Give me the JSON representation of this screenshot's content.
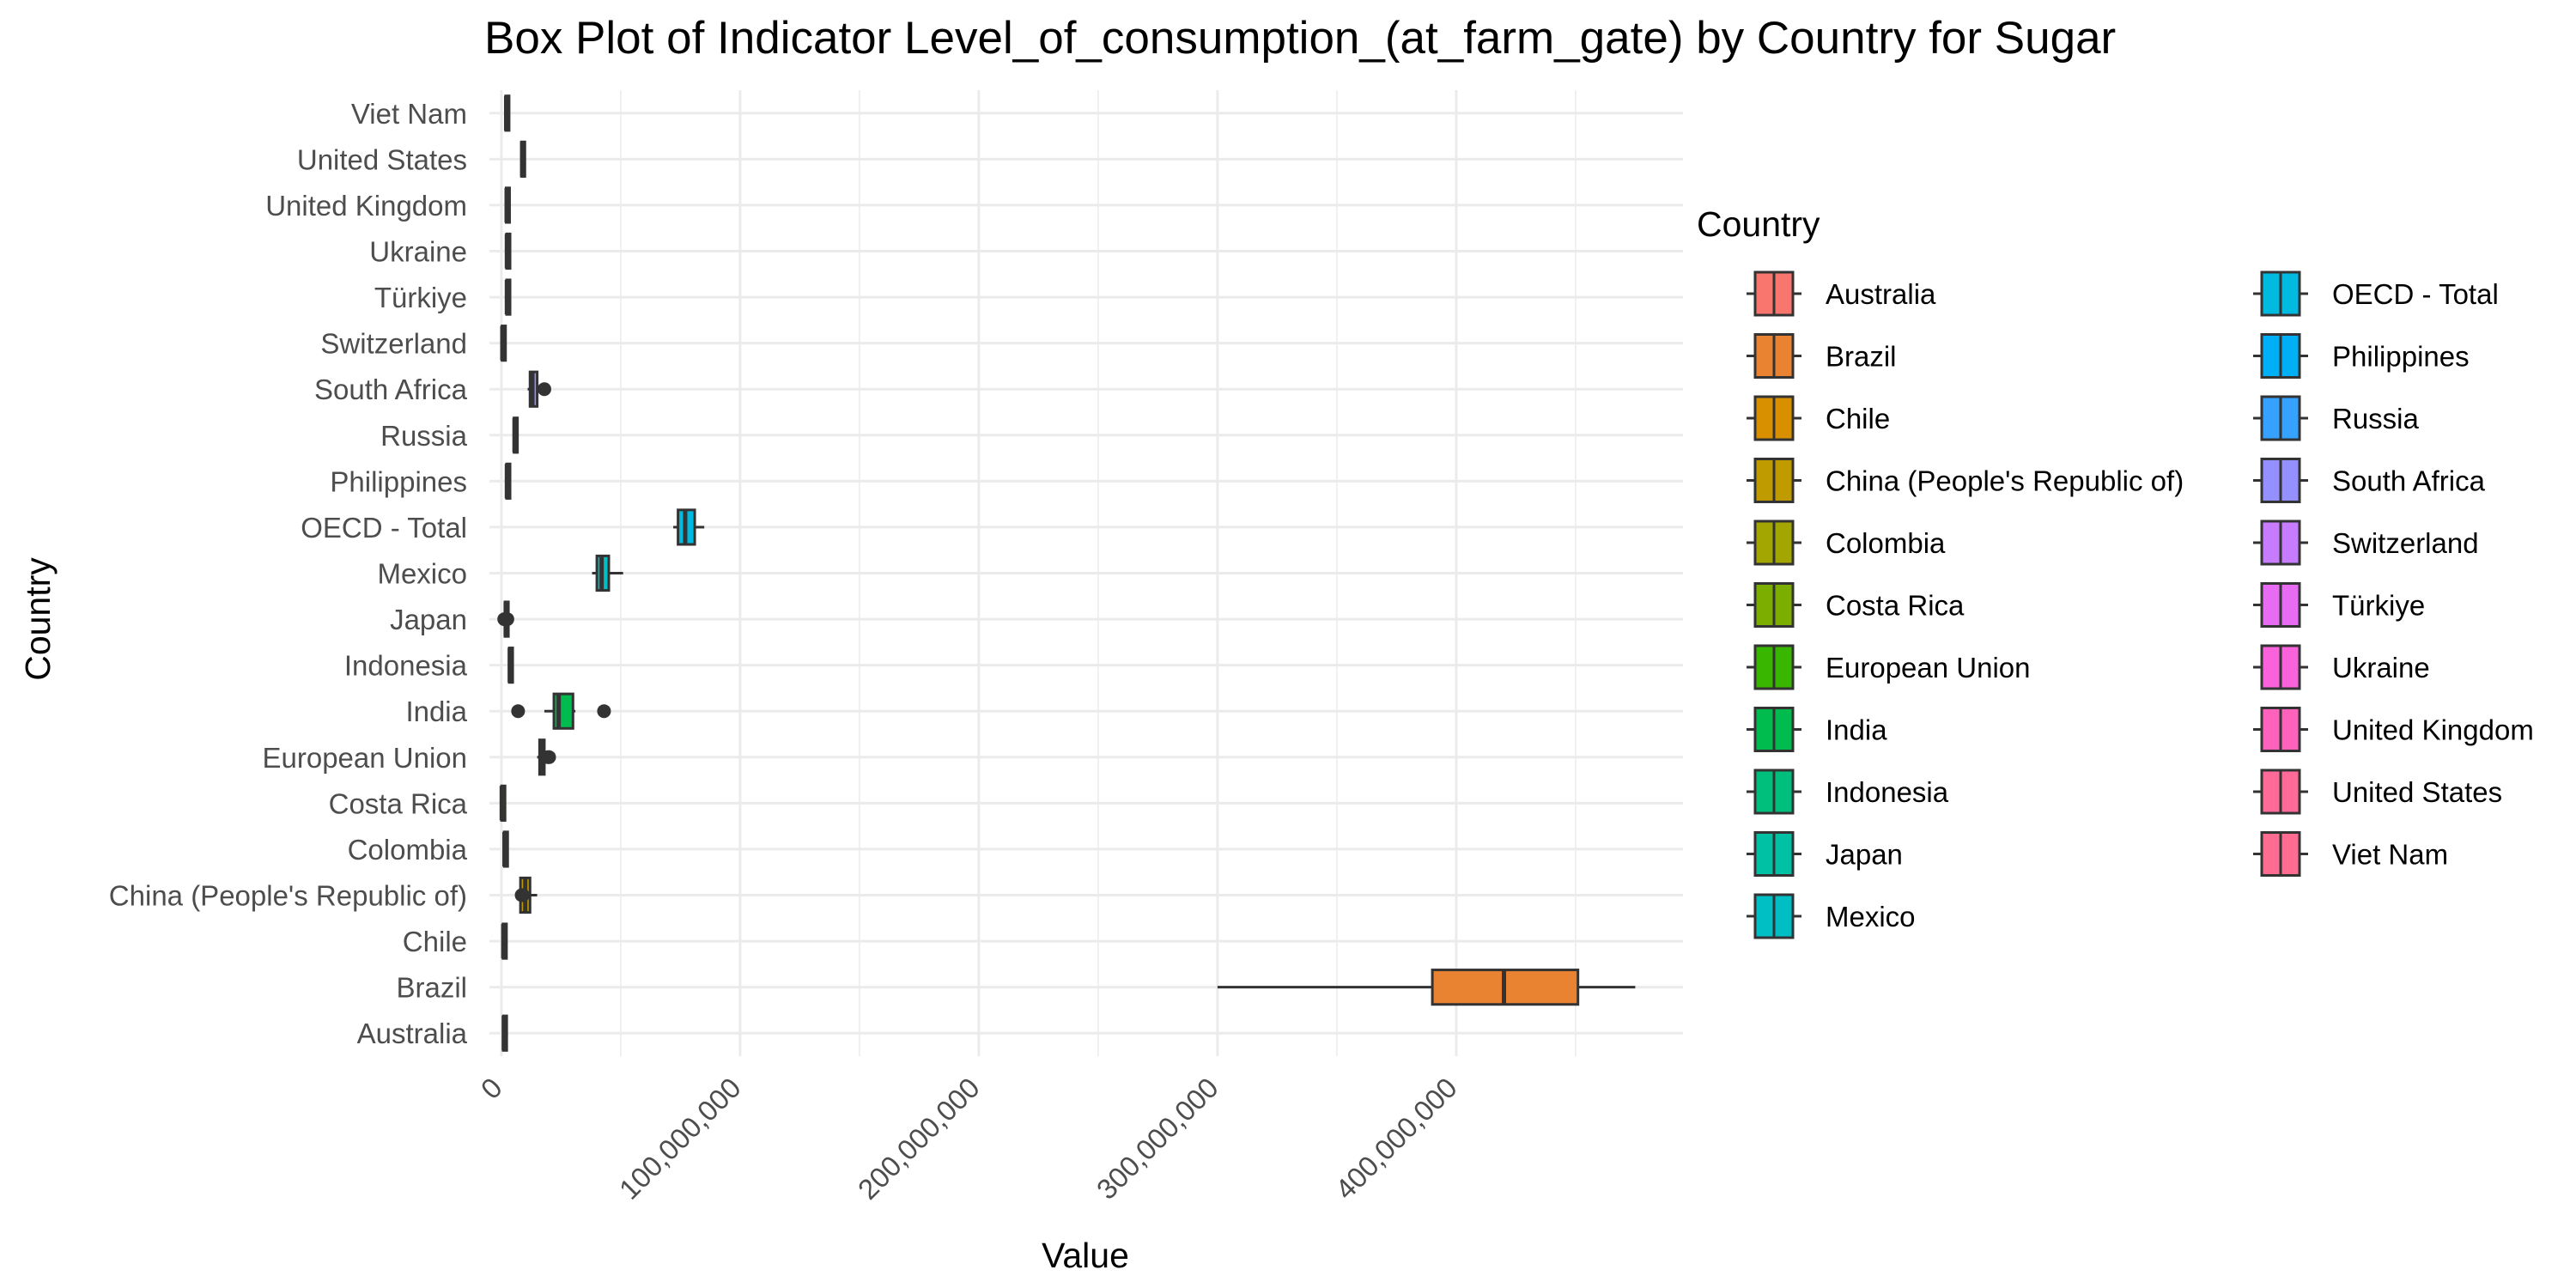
{
  "chart_data": {
    "type": "boxplot",
    "title": "Box Plot of Indicator Level_of_consumption_(at_farm_gate) by Country for Sugar",
    "xlabel": "Value",
    "ylabel": "Country",
    "xlim": [
      -5000000,
      495000000
    ],
    "x_ticks": [
      0,
      100000000,
      200000000,
      300000000,
      400000000
    ],
    "x_tick_labels": [
      "0",
      "100,000,000",
      "200,000,000",
      "300,000,000",
      "400,000,000"
    ],
    "grid": true,
    "legend": {
      "title": "Country",
      "placement": "right",
      "columns": 2
    },
    "categories": [
      "Australia",
      "Brazil",
      "Chile",
      "China (People's Republic of)",
      "Colombia",
      "Costa Rica",
      "European Union",
      "India",
      "Indonesia",
      "Japan",
      "Mexico",
      "OECD - Total",
      "Philippines",
      "Russia",
      "South Africa",
      "Switzerland",
      "Türkiye",
      "Ukraine",
      "United Kingdom",
      "United States",
      "Viet Nam"
    ],
    "colors": [
      "#F8766D",
      "#EA8331",
      "#D89000",
      "#C09B00",
      "#A3A500",
      "#7CAE00",
      "#39B600",
      "#00BB4E",
      "#00BF7D",
      "#00C1A3",
      "#00BFC4",
      "#00BAE0",
      "#00B0F6",
      "#35A2FF",
      "#9590FF",
      "#C77CFF",
      "#E76BF3",
      "#FA62DB",
      "#FF62BC",
      "#FF6A98",
      "#FF6C91"
    ],
    "series": [
      {
        "name": "Australia",
        "min": 500000,
        "q1": 800000,
        "median": 1000000,
        "q3": 1200000,
        "max": 1500000,
        "outliers": []
      },
      {
        "name": "Brazil",
        "min": 300000000,
        "q1": 390000000,
        "median": 420000000,
        "q3": 451000000,
        "max": 475000000,
        "outliers": []
      },
      {
        "name": "Chile",
        "min": 500000,
        "q1": 700000,
        "median": 800000,
        "q3": 1000000,
        "max": 1200000,
        "outliers": []
      },
      {
        "name": "China (People's Republic of)",
        "min": 7000000,
        "q1": 8000000,
        "median": 10000000,
        "q3": 12000000,
        "max": 15000000,
        "outliers": [
          8500000,
          9000000
        ]
      },
      {
        "name": "Colombia",
        "min": 1000000,
        "q1": 1200000,
        "median": 1300000,
        "q3": 1500000,
        "max": 1700000,
        "outliers": []
      },
      {
        "name": "Costa Rica",
        "min": 0,
        "q1": 100000,
        "median": 150000,
        "q3": 200000,
        "max": 300000,
        "outliers": []
      },
      {
        "name": "European Union",
        "min": 15000000,
        "q1": 16000000,
        "median": 17000000,
        "q3": 18000000,
        "max": 19000000,
        "outliers": [
          19500000,
          20000000
        ]
      },
      {
        "name": "India",
        "min": 18000000,
        "q1": 22000000,
        "median": 24000000,
        "q3": 30000000,
        "max": 31000000,
        "outliers": [
          7000000,
          43000000
        ]
      },
      {
        "name": "Indonesia",
        "min": 3000000,
        "q1": 3300000,
        "median": 3500000,
        "q3": 3800000,
        "max": 4000000,
        "outliers": []
      },
      {
        "name": "Japan",
        "min": 1000000,
        "q1": 1500000,
        "median": 1800000,
        "q3": 2200000,
        "max": 3000000,
        "outliers": [
          1200000,
          2500000
        ]
      },
      {
        "name": "Mexico",
        "min": 38000000,
        "q1": 40000000,
        "median": 42000000,
        "q3": 45000000,
        "max": 51000000,
        "outliers": []
      },
      {
        "name": "OECD - Total",
        "min": 72000000,
        "q1": 74000000,
        "median": 77000000,
        "q3": 81000000,
        "max": 85000000,
        "outliers": []
      },
      {
        "name": "Philippines",
        "min": 2000000,
        "q1": 2200000,
        "median": 2300000,
        "q3": 2500000,
        "max": 2800000,
        "outliers": []
      },
      {
        "name": "Russia",
        "min": 5000000,
        "q1": 5300000,
        "median": 5500000,
        "q3": 5800000,
        "max": 6000000,
        "outliers": []
      },
      {
        "name": "South Africa",
        "min": 11000000,
        "q1": 12000000,
        "median": 13000000,
        "q3": 15000000,
        "max": 15500000,
        "outliers": [
          18000000
        ]
      },
      {
        "name": "Switzerland",
        "min": 200000,
        "q1": 300000,
        "median": 400000,
        "q3": 500000,
        "max": 600000,
        "outliers": []
      },
      {
        "name": "Türkiye",
        "min": 2000000,
        "q1": 2200000,
        "median": 2300000,
        "q3": 2500000,
        "max": 2700000,
        "outliers": []
      },
      {
        "name": "Ukraine",
        "min": 2000000,
        "q1": 2200000,
        "median": 2300000,
        "q3": 2500000,
        "max": 2700000,
        "outliers": []
      },
      {
        "name": "United Kingdom",
        "min": 1800000,
        "q1": 2000000,
        "median": 2200000,
        "q3": 2400000,
        "max": 2600000,
        "outliers": []
      },
      {
        "name": "United States",
        "min": 8000000,
        "q1": 8400000,
        "median": 8700000,
        "q3": 9000000,
        "max": 9400000,
        "outliers": []
      },
      {
        "name": "Viet Nam",
        "min": 1500000,
        "q1": 1800000,
        "median": 2000000,
        "q3": 2200000,
        "max": 2500000,
        "outliers": []
      }
    ]
  }
}
